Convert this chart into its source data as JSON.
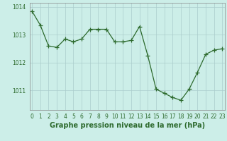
{
  "x": [
    0,
    1,
    2,
    3,
    4,
    5,
    6,
    7,
    8,
    9,
    10,
    11,
    12,
    13,
    14,
    15,
    16,
    17,
    18,
    19,
    20,
    21,
    22,
    23
  ],
  "y": [
    1013.85,
    1013.35,
    1012.6,
    1012.55,
    1012.85,
    1012.75,
    1012.85,
    1013.2,
    1013.2,
    1013.2,
    1012.75,
    1012.75,
    1012.8,
    1013.3,
    1012.25,
    1011.05,
    1010.9,
    1010.75,
    1010.65,
    1011.05,
    1011.65,
    1012.3,
    1012.45,
    1012.5
  ],
  "line_color": "#2d6a2d",
  "marker": "+",
  "marker_size": 4,
  "marker_color": "#2d6a2d",
  "background_color": "#cceee8",
  "grid_color": "#aacccc",
  "xlabel": "Graphe pression niveau de la mer (hPa)",
  "xlabel_fontsize": 7,
  "xlabel_color": "#2d6a2d",
  "ylabel_ticks": [
    1011,
    1012,
    1013,
    1014
  ],
  "ylim": [
    1010.3,
    1014.15
  ],
  "xlim": [
    -0.3,
    23.3
  ],
  "xtick_fontsize": 5.5,
  "ytick_fontsize": 5.5,
  "tick_color": "#2d6a2d"
}
